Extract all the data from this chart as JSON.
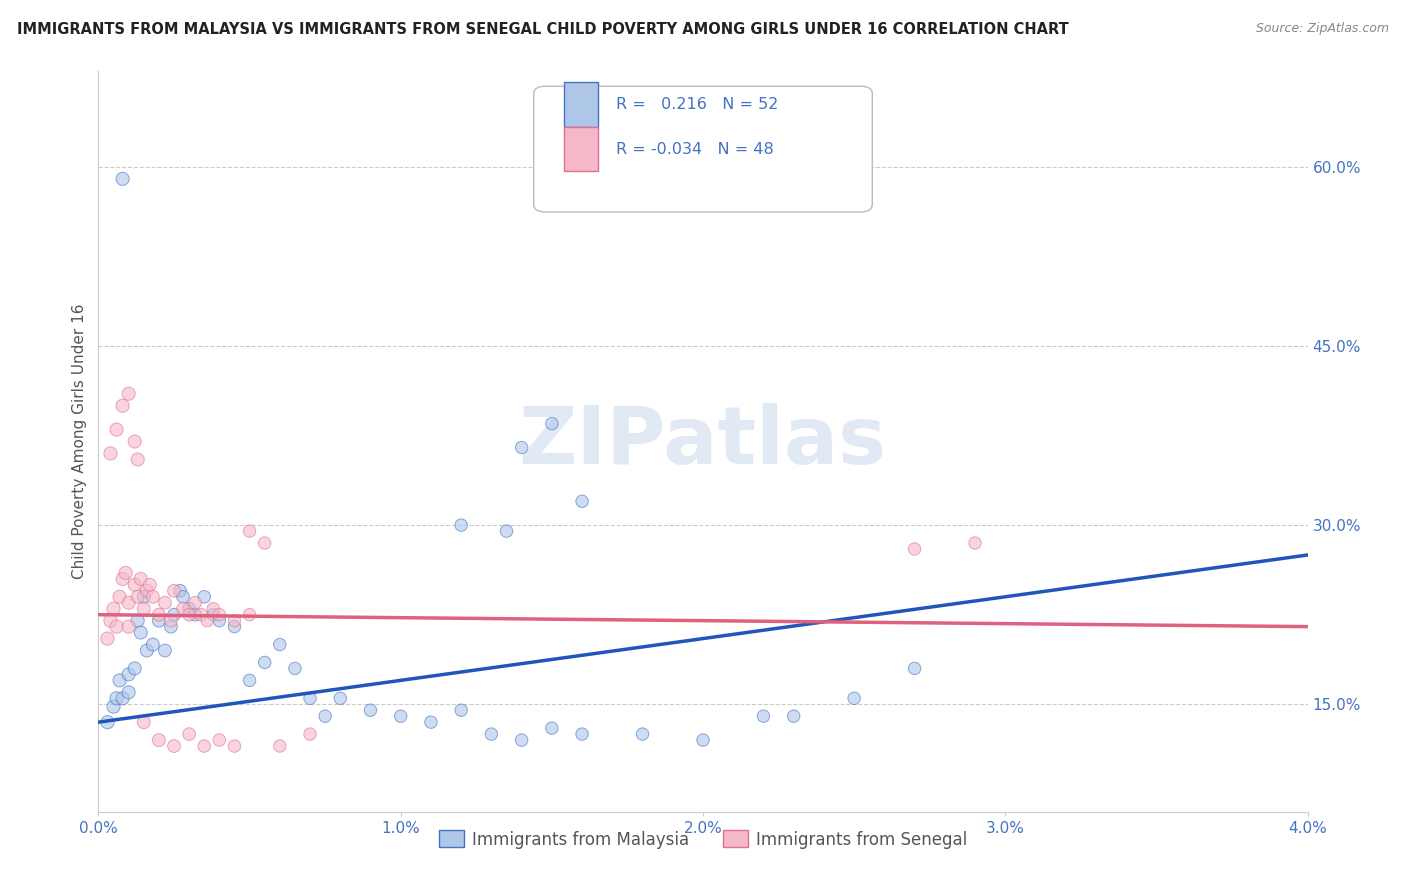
{
  "title": "IMMIGRANTS FROM MALAYSIA VS IMMIGRANTS FROM SENEGAL CHILD POVERTY AMONG GIRLS UNDER 16 CORRELATION CHART",
  "source": "Source: ZipAtlas.com",
  "ylabel": "Child Poverty Among Girls Under 16",
  "xlim": [
    0.0,
    0.04
  ],
  "ylim": [
    0.06,
    0.68
  ],
  "xticks": [
    0.0,
    0.01,
    0.02,
    0.03,
    0.04
  ],
  "xtick_labels": [
    "0.0%",
    "1.0%",
    "2.0%",
    "3.0%",
    "4.0%"
  ],
  "yticks": [
    0.15,
    0.3,
    0.45,
    0.6
  ],
  "ytick_labels": [
    "15.0%",
    "30.0%",
    "45.0%",
    "60.0%"
  ],
  "malaysia_color": "#aec6e8",
  "malaysia_edge_color": "#4472c4",
  "senegal_color": "#f5b8c8",
  "senegal_edge_color": "#e07090",
  "malaysia_line_color": "#2255bb",
  "senegal_line_color": "#e06080",
  "malaysia_R": 0.216,
  "malaysia_N": 52,
  "senegal_R": -0.034,
  "senegal_N": 48,
  "legend_label_1": "Immigrants from Malaysia",
  "legend_label_2": "Immigrants from Senegal",
  "watermark": "ZIPatlas",
  "malaysia_scatter": [
    [
      0.0003,
      0.135
    ],
    [
      0.0005,
      0.148
    ],
    [
      0.0006,
      0.155
    ],
    [
      0.0007,
      0.17
    ],
    [
      0.0008,
      0.155
    ],
    [
      0.001,
      0.16
    ],
    [
      0.001,
      0.175
    ],
    [
      0.0012,
      0.18
    ],
    [
      0.0013,
      0.22
    ],
    [
      0.0014,
      0.21
    ],
    [
      0.0015,
      0.24
    ],
    [
      0.0016,
      0.195
    ],
    [
      0.0018,
      0.2
    ],
    [
      0.002,
      0.22
    ],
    [
      0.0022,
      0.195
    ],
    [
      0.0024,
      0.215
    ],
    [
      0.0025,
      0.225
    ],
    [
      0.0027,
      0.245
    ],
    [
      0.0028,
      0.24
    ],
    [
      0.003,
      0.23
    ],
    [
      0.0032,
      0.225
    ],
    [
      0.0035,
      0.24
    ],
    [
      0.0038,
      0.225
    ],
    [
      0.004,
      0.22
    ],
    [
      0.0045,
      0.215
    ],
    [
      0.005,
      0.17
    ],
    [
      0.0055,
      0.185
    ],
    [
      0.006,
      0.2
    ],
    [
      0.0065,
      0.18
    ],
    [
      0.007,
      0.155
    ],
    [
      0.0075,
      0.14
    ],
    [
      0.008,
      0.155
    ],
    [
      0.009,
      0.145
    ],
    [
      0.01,
      0.14
    ],
    [
      0.011,
      0.135
    ],
    [
      0.012,
      0.145
    ],
    [
      0.013,
      0.125
    ],
    [
      0.014,
      0.12
    ],
    [
      0.015,
      0.13
    ],
    [
      0.016,
      0.125
    ],
    [
      0.018,
      0.125
    ],
    [
      0.02,
      0.12
    ],
    [
      0.022,
      0.14
    ],
    [
      0.023,
      0.14
    ],
    [
      0.025,
      0.155
    ],
    [
      0.027,
      0.18
    ],
    [
      0.012,
      0.3
    ],
    [
      0.015,
      0.385
    ],
    [
      0.014,
      0.365
    ],
    [
      0.016,
      0.32
    ],
    [
      0.0135,
      0.295
    ],
    [
      0.0008,
      0.59
    ]
  ],
  "senegal_scatter": [
    [
      0.0003,
      0.205
    ],
    [
      0.0004,
      0.22
    ],
    [
      0.0005,
      0.23
    ],
    [
      0.0006,
      0.215
    ],
    [
      0.0007,
      0.24
    ],
    [
      0.0008,
      0.255
    ],
    [
      0.0009,
      0.26
    ],
    [
      0.001,
      0.215
    ],
    [
      0.001,
      0.235
    ],
    [
      0.0012,
      0.25
    ],
    [
      0.0013,
      0.24
    ],
    [
      0.0014,
      0.255
    ],
    [
      0.0015,
      0.23
    ],
    [
      0.0016,
      0.245
    ],
    [
      0.0017,
      0.25
    ],
    [
      0.0018,
      0.24
    ],
    [
      0.002,
      0.225
    ],
    [
      0.0022,
      0.235
    ],
    [
      0.0024,
      0.22
    ],
    [
      0.0025,
      0.245
    ],
    [
      0.0028,
      0.23
    ],
    [
      0.003,
      0.225
    ],
    [
      0.0032,
      0.235
    ],
    [
      0.0034,
      0.225
    ],
    [
      0.0036,
      0.22
    ],
    [
      0.0038,
      0.23
    ],
    [
      0.004,
      0.225
    ],
    [
      0.0045,
      0.22
    ],
    [
      0.005,
      0.225
    ],
    [
      0.005,
      0.295
    ],
    [
      0.0055,
      0.285
    ],
    [
      0.0004,
      0.36
    ],
    [
      0.0006,
      0.38
    ],
    [
      0.0008,
      0.4
    ],
    [
      0.001,
      0.41
    ],
    [
      0.0012,
      0.37
    ],
    [
      0.0013,
      0.355
    ],
    [
      0.0015,
      0.135
    ],
    [
      0.002,
      0.12
    ],
    [
      0.0025,
      0.115
    ],
    [
      0.003,
      0.125
    ],
    [
      0.0035,
      0.115
    ],
    [
      0.004,
      0.12
    ],
    [
      0.0045,
      0.115
    ],
    [
      0.006,
      0.115
    ],
    [
      0.007,
      0.125
    ],
    [
      0.027,
      0.28
    ],
    [
      0.029,
      0.285
    ]
  ],
  "background_color": "#ffffff",
  "grid_color": "#cccccc",
  "title_color": "#222222",
  "axis_label_color": "#4472c4",
  "tick_label_color": "#555555",
  "watermark_color": "#c8d8ec",
  "marker_size": 100,
  "marker_alpha": 0.6,
  "line_width": 2.5
}
